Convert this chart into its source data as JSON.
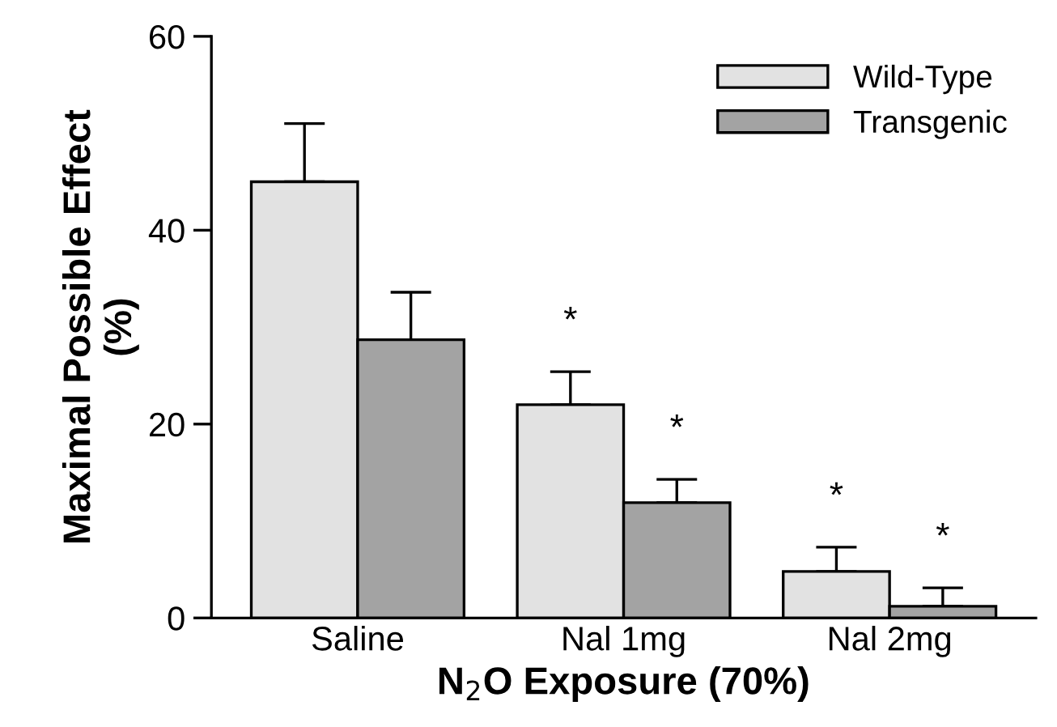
{
  "chart_data": {
    "type": "bar",
    "xlabel": "N$_{2}$O Exposure (70%)",
    "ylabel": "Maximal Possible Effect\n(%)",
    "categories": [
      "Saline",
      "Nal 1mg",
      "Nal 2mg"
    ],
    "series": [
      {
        "name": "Wild-Type",
        "color": "#e2e2e2",
        "values": [
          45,
          22,
          4.8
        ],
        "errors": [
          [
            45,
            51
          ],
          [
            22,
            25.4
          ],
          [
            4.8,
            7.3
          ]
        ]
      },
      {
        "name": "Transgenic",
        "color": "#a3a3a3",
        "values": [
          28.7,
          11.9,
          1.2
        ],
        "errors": [
          [
            28.7,
            33.6
          ],
          [
            11.9,
            14.3
          ],
          [
            1.2,
            3.1
          ]
        ]
      }
    ],
    "annotations": [
      "*",
      "*",
      "*",
      "*"
    ],
    "ylim": [
      0,
      60
    ],
    "yticks": [
      0,
      20,
      40,
      60
    ],
    "grid": false,
    "legend": "top right"
  }
}
